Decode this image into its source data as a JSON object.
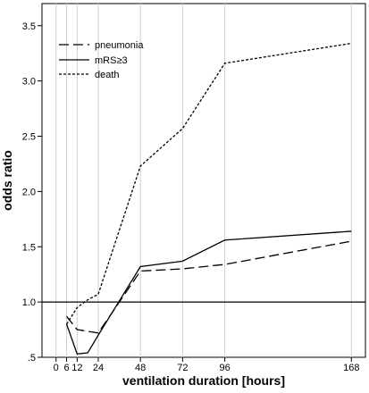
{
  "chart_data": {
    "type": "line",
    "xlabel": "ventilation duration [hours]",
    "ylabel": "odds ratio",
    "xlim": [
      -8,
      176
    ],
    "ylim": [
      0.5,
      3.7
    ],
    "x_ticks": [
      0,
      6,
      12,
      24,
      48,
      72,
      96,
      168
    ],
    "x_tick_labels": [
      "0",
      "6",
      "12",
      "24",
      "48",
      "72",
      "96",
      "168"
    ],
    "y_ticks": [
      0.5,
      1.0,
      1.5,
      2.0,
      2.5,
      3.0,
      3.5
    ],
    "y_tick_labels": [
      ".5",
      "1.0",
      "1.5",
      "2.0",
      "2.5",
      "3.0",
      "3.5"
    ],
    "vertical_grid": true,
    "reference_line": 1.0,
    "legend_position": "top-left",
    "series": [
      {
        "name": "pneumonia",
        "style": "dashed",
        "x": [
          6,
          12,
          24,
          48,
          72,
          96,
          168
        ],
        "y": [
          0.87,
          0.75,
          0.72,
          1.28,
          1.3,
          1.34,
          1.55
        ]
      },
      {
        "name": "mRS≥3",
        "style": "solid",
        "x": [
          6,
          12,
          18,
          24,
          48,
          72,
          96,
          168
        ],
        "y": [
          0.8,
          0.53,
          0.54,
          0.7,
          1.32,
          1.37,
          1.56,
          1.64
        ]
      },
      {
        "name": "death",
        "style": "dotted",
        "x": [
          6,
          12,
          18,
          24,
          48,
          72,
          96,
          168
        ],
        "y": [
          0.8,
          0.95,
          1.02,
          1.07,
          2.23,
          2.57,
          3.16,
          3.34
        ]
      }
    ]
  }
}
